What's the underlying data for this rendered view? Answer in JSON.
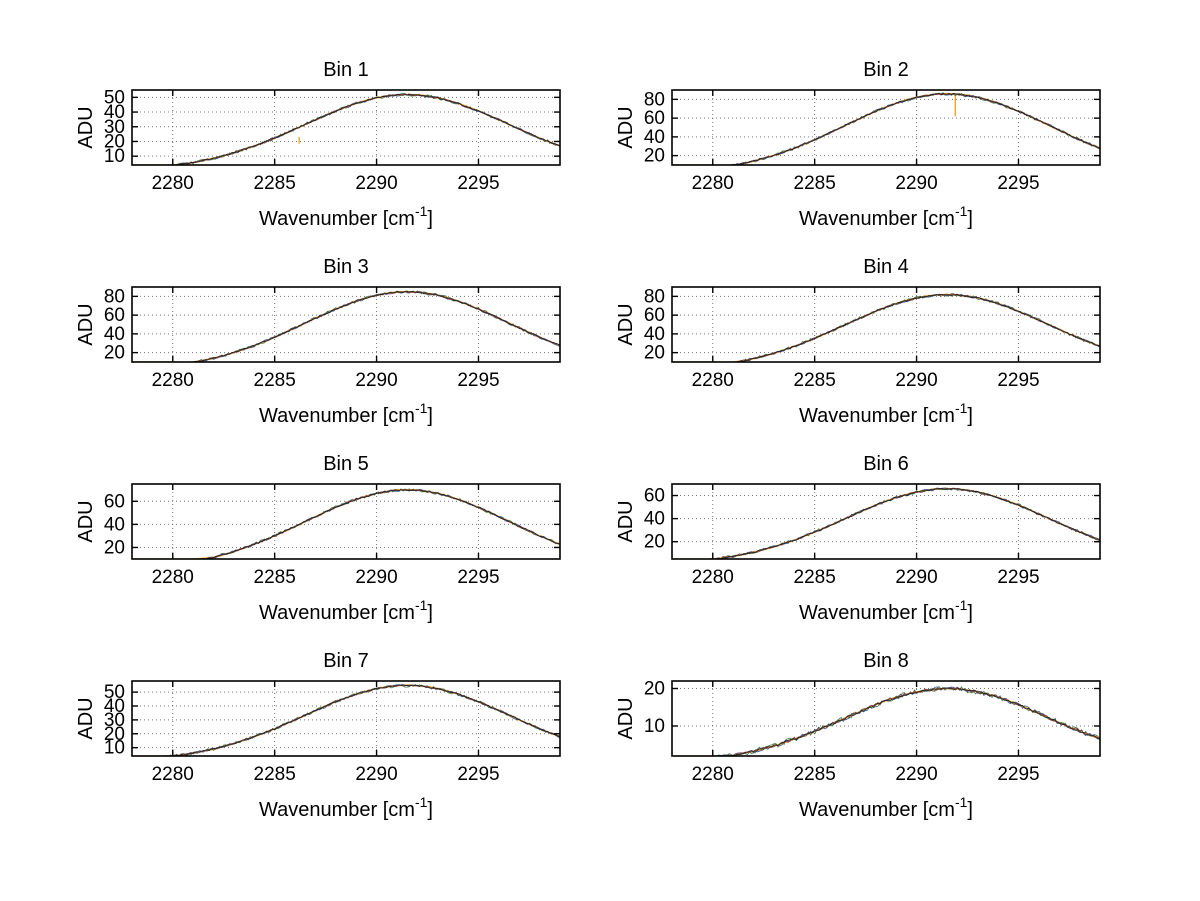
{
  "figure": {
    "background": "#ffffff",
    "description": "Eight stacked spectral subplots, ADU vs Wavenumber, Bins 1-8"
  },
  "chart_data": {
    "type": "line",
    "layout": {
      "rows": 4,
      "cols": 2,
      "grid": "on",
      "legend": "none"
    },
    "x_axis": {
      "label": {
        "base": "Wavenumber [cm",
        "sup": "-1",
        "close": "]"
      },
      "label_plain": "Wavenumber [cm^-1]",
      "ticks": [
        2280,
        2285,
        2290,
        2295
      ],
      "range": [
        2278,
        2299
      ]
    },
    "y_axis_label": "ADU",
    "colors": {
      "smooth": "#efa620",
      "noisy": [
        "#336b2d",
        "#26418f",
        "#8b3a3a",
        "#1c1c1c"
      ]
    },
    "x": [
      2278,
      2279,
      2280,
      2281,
      2282,
      2283,
      2284,
      2285,
      2286,
      2287,
      2288,
      2289,
      2290,
      2291,
      2292,
      2293,
      2294,
      2295,
      2296,
      2297,
      2298,
      2299
    ],
    "subplots": [
      {
        "title": "Bin 1",
        "ylim": [
          4,
          55
        ],
        "yticks": [
          10,
          20,
          30,
          40,
          50
        ],
        "noise": 1,
        "values": [
          1.4,
          2.3,
          3.7,
          5.7,
          8.6,
          12.3,
          16.9,
          22.3,
          28.4,
          34.7,
          40.7,
          45.9,
          49.7,
          51.7,
          51.7,
          49.7,
          45.9,
          40.7,
          34.7,
          28.4,
          22.3,
          16.9
        ],
        "spike": {
          "x": 2286.2,
          "from": 23,
          "to": 18.5
        }
      },
      {
        "title": "Bin 2",
        "ylim": [
          10,
          90
        ],
        "yticks": [
          20,
          40,
          60,
          80
        ],
        "noise": 1,
        "values": [
          2.2,
          3.8,
          6.1,
          9.5,
          14.1,
          20.3,
          27.9,
          36.9,
          47.0,
          57.4,
          67.3,
          75.9,
          82.2,
          85.6,
          85.6,
          82.2,
          75.9,
          67.3,
          57.4,
          47.0,
          36.9,
          27.9
        ],
        "spike": {
          "x": 2291.9,
          "from": 85.5,
          "to": 62
        }
      },
      {
        "title": "Bin 3",
        "ylim": [
          10,
          90
        ],
        "yticks": [
          20,
          40,
          60,
          80
        ],
        "noise": 1,
        "values": [
          2.2,
          3.7,
          6.0,
          9.4,
          14.0,
          20.0,
          27.6,
          36.5,
          46.4,
          56.7,
          66.5,
          75.0,
          81.3,
          84.6,
          84.6,
          81.3,
          75.0,
          66.5,
          56.7,
          46.4,
          36.5,
          27.6
        ]
      },
      {
        "title": "Bin 4",
        "ylim": [
          10,
          90
        ],
        "yticks": [
          20,
          40,
          60,
          80
        ],
        "noise": 1,
        "values": [
          2.1,
          3.6,
          5.8,
          9.0,
          13.5,
          19.3,
          26.6,
          35.2,
          44.8,
          54.7,
          64.2,
          72.4,
          78.4,
          81.6,
          81.6,
          78.4,
          72.4,
          64.2,
          54.7,
          44.8,
          35.2,
          26.6
        ]
      },
      {
        "title": "Bin 5",
        "ylim": [
          10,
          75
        ],
        "yticks": [
          20,
          40,
          60
        ],
        "noise": 1,
        "values": [
          1.8,
          3.1,
          5.0,
          7.7,
          11.5,
          16.5,
          22.7,
          30.1,
          38.2,
          46.7,
          54.8,
          61.8,
          66.9,
          69.7,
          69.7,
          66.9,
          61.8,
          54.8,
          46.7,
          38.2,
          30.1,
          22.7
        ]
      },
      {
        "title": "Bin 6",
        "ylim": [
          5,
          70
        ],
        "yticks": [
          20,
          40,
          60
        ],
        "noise": 1,
        "values": [
          1.7,
          2.9,
          4.7,
          7.3,
          10.9,
          15.6,
          21.4,
          28.4,
          36.0,
          44.0,
          51.7,
          58.2,
          63.1,
          65.7,
          65.7,
          63.1,
          58.2,
          51.7,
          44.0,
          36.0,
          28.4,
          21.4
        ]
      },
      {
        "title": "Bin 7",
        "ylim": [
          4,
          58
        ],
        "yticks": [
          10,
          20,
          30,
          40,
          50
        ],
        "noise": 1,
        "values": [
          1.4,
          2.4,
          3.9,
          6.1,
          9.0,
          13.0,
          17.9,
          23.6,
          30.0,
          36.7,
          43.0,
          48.5,
          52.6,
          54.7,
          54.7,
          52.6,
          48.5,
          43.0,
          36.7,
          30.0,
          23.6,
          17.9
        ]
      },
      {
        "title": "Bin 8",
        "ylim": [
          2,
          22
        ],
        "yticks": [
          10,
          20
        ],
        "noise": 1.7,
        "values": [
          0.5,
          0.9,
          1.4,
          2.2,
          3.3,
          4.7,
          6.5,
          8.6,
          10.9,
          13.3,
          15.7,
          17.7,
          19.1,
          19.9,
          19.9,
          19.1,
          17.7,
          15.7,
          13.3,
          10.9,
          8.6,
          6.5
        ]
      }
    ]
  }
}
